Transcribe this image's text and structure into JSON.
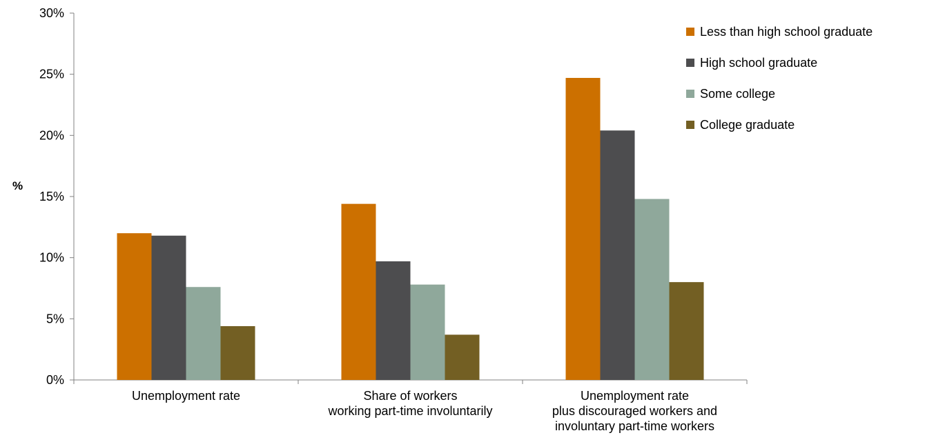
{
  "chart_data": {
    "type": "bar",
    "title": "",
    "xlabel": "",
    "ylabel": "%",
    "ylim": [
      0,
      30
    ],
    "yticks": [
      0,
      5,
      10,
      15,
      20,
      25,
      30
    ],
    "ytick_labels": [
      "0%",
      "5%",
      "10%",
      "15%",
      "20%",
      "25%",
      "30%"
    ],
    "grid": false,
    "legend_position": "top-right",
    "categories": [
      [
        "Unemployment rate"
      ],
      [
        "Share of workers",
        "working part-time involuntarily"
      ],
      [
        "Unemployment rate",
        "plus discouraged workers and",
        "involuntary part-time workers"
      ]
    ],
    "series": [
      {
        "name": "Less than high school graduate",
        "color": "#cc7000",
        "values": [
          12.0,
          14.4,
          24.7
        ]
      },
      {
        "name": "High school graduate",
        "color": "#4d4d4f",
        "values": [
          11.8,
          9.7,
          20.4
        ]
      },
      {
        "name": "Some college",
        "color": "#8fa89b",
        "values": [
          7.6,
          7.8,
          14.8
        ]
      },
      {
        "name": "College graduate",
        "color": "#735f23",
        "values": [
          4.4,
          3.7,
          8.0
        ]
      }
    ]
  }
}
